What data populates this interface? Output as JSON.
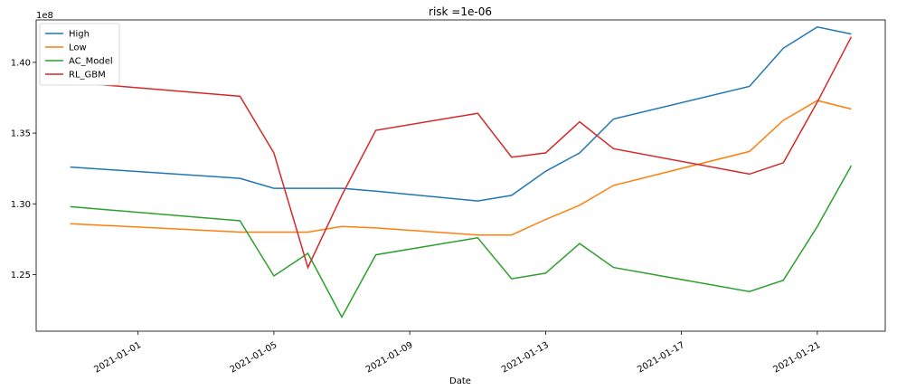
{
  "chart_data": {
    "type": "line",
    "title": "risk =1e-06",
    "xlabel": "Date",
    "ylabel": "",
    "y_offset_label": "1e8",
    "ylim": [
      1.21,
      1.43
    ],
    "xlim": [
      "2020-12-29",
      "2021-01-23"
    ],
    "x_ticks": [
      "2021-01-01",
      "2021-01-05",
      "2021-01-09",
      "2021-01-13",
      "2021-01-17",
      "2021-01-21"
    ],
    "y_ticks": [
      1.25,
      1.3,
      1.35,
      1.4
    ],
    "y_tick_labels": [
      "1.25",
      "1.30",
      "1.35",
      "1.40"
    ],
    "grid": false,
    "legend_position": "top-left",
    "x": [
      "2020-12-30",
      "2021-01-04",
      "2021-01-05",
      "2021-01-06",
      "2021-01-07",
      "2021-01-08",
      "2021-01-11",
      "2021-01-12",
      "2021-01-13",
      "2021-01-14",
      "2021-01-15",
      "2021-01-19",
      "2021-01-20",
      "2021-01-21",
      "2021-01-22"
    ],
    "series": [
      {
        "name": "High",
        "color": "#1f77b4",
        "values": [
          1.326,
          1.318,
          1.311,
          1.311,
          1.311,
          1.309,
          1.302,
          1.306,
          1.323,
          1.336,
          1.36,
          1.383,
          1.41,
          1.425,
          1.42
        ]
      },
      {
        "name": "Low",
        "color": "#ff7f0e",
        "values": [
          1.286,
          1.28,
          1.28,
          1.28,
          1.284,
          1.283,
          1.278,
          1.278,
          1.289,
          1.299,
          1.313,
          1.337,
          1.359,
          1.373,
          1.367
        ]
      },
      {
        "name": "AC_Model",
        "color": "#2ca02c",
        "values": [
          1.298,
          1.288,
          1.249,
          1.265,
          1.22,
          1.264,
          1.276,
          1.247,
          1.251,
          1.272,
          1.255,
          1.238,
          1.246,
          1.284,
          1.327
        ]
      },
      {
        "name": "RL_GBM",
        "color": "#d62728",
        "values": [
          1.386,
          1.376,
          1.336,
          1.255,
          1.306,
          1.352,
          1.364,
          1.333,
          1.336,
          1.358,
          1.339,
          1.321,
          1.329,
          1.372,
          1.418
        ]
      }
    ]
  }
}
